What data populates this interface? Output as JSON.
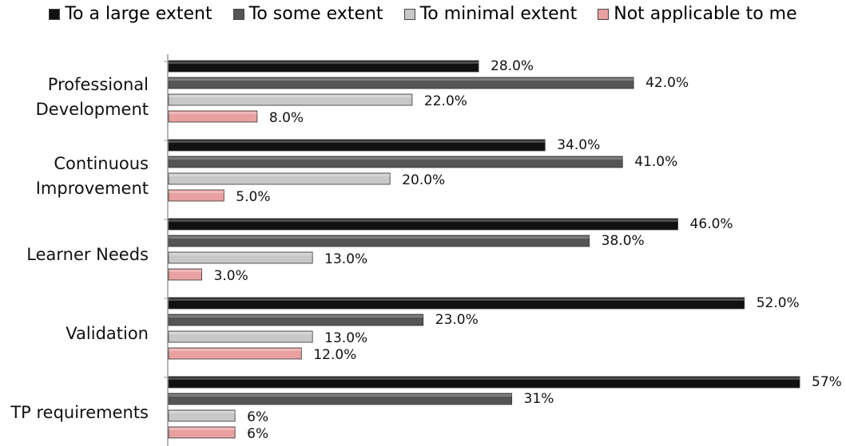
{
  "chart_data": {
    "type": "bar",
    "orientation": "horizontal",
    "categories": [
      "Professional Development",
      "Continuous Improvement",
      "Learner Needs",
      "Validation",
      "TP requirements"
    ],
    "category_lines": [
      [
        "Professional",
        "Development"
      ],
      [
        "Continuous",
        "Improvement"
      ],
      [
        "Learner Needs"
      ],
      [
        "Validation"
      ],
      [
        "TP requirements"
      ]
    ],
    "series": [
      {
        "name": "To a large extent",
        "color": "#111111",
        "values": [
          28,
          34,
          46,
          52,
          57
        ],
        "labels": [
          "28.0%",
          "34.0%",
          "46.0%",
          "52.0%",
          "57%"
        ]
      },
      {
        "name": "To some extent",
        "color": "#555555",
        "values": [
          42,
          41,
          38,
          23,
          31
        ],
        "labels": [
          "42.0%",
          "41.0%",
          "38.0%",
          "23.0%",
          "31%"
        ]
      },
      {
        "name": "To minimal extent",
        "color": "#c8c8c8",
        "values": [
          22,
          20,
          13,
          13,
          6
        ],
        "labels": [
          "22.0%",
          "20.0%",
          "13.0%",
          "13.0%",
          "6%"
        ]
      },
      {
        "name": "Not applicable to me",
        "color": "#e9a0a0",
        "values": [
          8,
          5,
          3,
          12,
          6
        ],
        "labels": [
          "8.0%",
          "5.0%",
          "3.0%",
          "12.0%",
          "6%"
        ]
      }
    ],
    "xlim": [
      0,
      57
    ],
    "legend_position": "top",
    "grid": false
  }
}
